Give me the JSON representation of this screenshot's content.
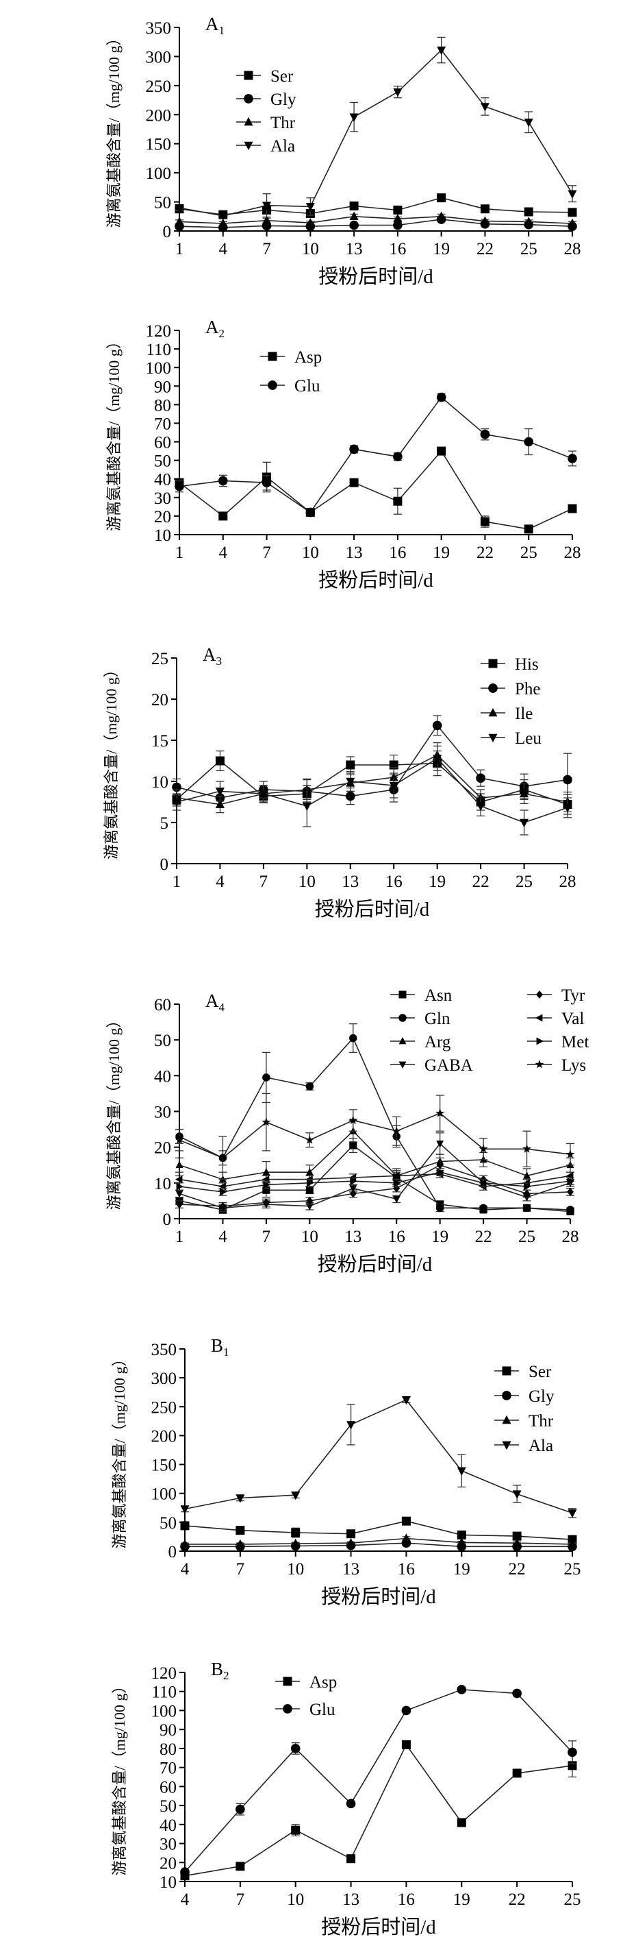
{
  "chart_data": [
    {
      "panel": "A",
      "panel_sub": "1",
      "type": "line",
      "xlabel": "授粉后时间/d",
      "ylabel": "游离氨基酸含量/（mg/100 g）",
      "x": [
        1,
        4,
        7,
        10,
        13,
        16,
        19,
        22,
        25,
        28
      ],
      "xlim": [
        1,
        28
      ],
      "ylim": [
        0,
        350
      ],
      "yticks": [
        0,
        50,
        100,
        150,
        200,
        250,
        300,
        350
      ],
      "legend_position": "top-left",
      "series": [
        {
          "name": "Ser",
          "marker": "square",
          "values": [
            38,
            28,
            36,
            30,
            43,
            36,
            57,
            38,
            33,
            32
          ],
          "errors": [
            5,
            3,
            5,
            3,
            3,
            3,
            3,
            4,
            3,
            3
          ]
        },
        {
          "name": "Gly",
          "marker": "circle",
          "values": [
            8,
            6,
            9,
            8,
            10,
            10,
            20,
            12,
            11,
            8
          ],
          "errors": [
            2,
            2,
            2,
            2,
            2,
            2,
            3,
            2,
            2,
            2
          ]
        },
        {
          "name": "Thr",
          "marker": "triangle-up",
          "values": [
            16,
            13,
            18,
            14,
            25,
            21,
            25,
            17,
            16,
            13
          ],
          "errors": [
            3,
            3,
            4,
            3,
            4,
            3,
            4,
            3,
            3,
            3
          ]
        },
        {
          "name": "Ala",
          "marker": "triangle-down",
          "values": [
            40,
            26,
            44,
            42,
            196,
            239,
            311,
            214,
            187,
            64
          ],
          "errors": [
            5,
            5,
            20,
            15,
            25,
            10,
            22,
            15,
            18,
            14
          ]
        }
      ]
    },
    {
      "panel": "A",
      "panel_sub": "2",
      "type": "line",
      "xlabel": "授粉后时间/d",
      "ylabel": "游离氨基酸含量/（mg/100 g）",
      "x": [
        1,
        4,
        7,
        10,
        13,
        16,
        19,
        22,
        25,
        28
      ],
      "xlim": [
        1,
        28
      ],
      "ylim": [
        10,
        120
      ],
      "yticks": [
        10,
        20,
        30,
        40,
        50,
        60,
        70,
        80,
        90,
        100,
        110,
        120
      ],
      "legend_position": "top-left",
      "series": [
        {
          "name": "Asp",
          "marker": "square",
          "values": [
            38,
            20,
            41,
            22,
            38,
            28,
            55,
            17,
            13,
            24
          ],
          "errors": [
            2,
            1,
            8,
            1,
            1,
            7,
            1,
            3,
            1,
            1
          ]
        },
        {
          "name": "Glu",
          "marker": "circle",
          "values": [
            36,
            39,
            38,
            22,
            56,
            52,
            84,
            64,
            60,
            51
          ],
          "errors": [
            3,
            3,
            4,
            2,
            2,
            2,
            2,
            3,
            7,
            4
          ]
        }
      ]
    },
    {
      "panel": "A",
      "panel_sub": "3",
      "type": "line",
      "xlabel": "授粉后时间/d",
      "ylabel": "游离氨基酸含量/（mg/100 g）",
      "x": [
        1,
        4,
        7,
        10,
        13,
        16,
        19,
        22,
        25,
        28
      ],
      "xlim": [
        1,
        28
      ],
      "ylim": [
        0,
        25
      ],
      "yticks": [
        0,
        5,
        10,
        15,
        20,
        25
      ],
      "legend_position": "top-right",
      "series": [
        {
          "name": "His",
          "marker": "square",
          "values": [
            7.8,
            12.5,
            8.2,
            8.5,
            12.0,
            12.0,
            12.2,
            7.5,
            9.0,
            7.2
          ],
          "errors": [
            0.6,
            1.2,
            0.8,
            1.0,
            1.0,
            1.2,
            1.5,
            1.0,
            1.2,
            1.2
          ]
        },
        {
          "name": "Phe",
          "marker": "circle",
          "values": [
            9.3,
            8.0,
            9.0,
            8.8,
            8.2,
            9.0,
            16.8,
            10.4,
            9.4,
            10.2
          ],
          "errors": [
            1.0,
            1.2,
            1.0,
            1.5,
            1.0,
            1.5,
            1.2,
            1.0,
            1.5,
            3.2
          ]
        },
        {
          "name": "Ile",
          "marker": "triangle-up",
          "values": [
            8.0,
            7.2,
            8.5,
            9.0,
            9.8,
            10.5,
            13.2,
            8.0,
            8.5,
            7.5
          ],
          "errors": [
            1.0,
            1.0,
            1.0,
            1.2,
            1.0,
            1.2,
            1.5,
            1.0,
            1.2,
            1.2
          ]
        },
        {
          "name": "Leu",
          "marker": "triangle-down",
          "values": [
            7.5,
            8.8,
            8.5,
            7.0,
            10.0,
            9.5,
            12.8,
            7.0,
            5.0,
            6.8
          ],
          "errors": [
            1.0,
            1.2,
            1.0,
            2.5,
            1.2,
            1.5,
            1.5,
            1.2,
            1.5,
            1.2
          ]
        }
      ]
    },
    {
      "panel": "A",
      "panel_sub": "4",
      "type": "line",
      "xlabel": "授粉后时间/d",
      "ylabel": "游离氨基酸含量/（mg/100 g）",
      "x": [
        1,
        4,
        7,
        10,
        13,
        16,
        19,
        22,
        25,
        28
      ],
      "xlim": [
        1,
        28
      ],
      "ylim": [
        0,
        60
      ],
      "yticks": [
        0,
        10,
        20,
        30,
        40,
        50,
        60
      ],
      "legend_position": "top-right",
      "legend_columns": 2,
      "series": [
        {
          "name": "Asn",
          "marker": "square",
          "values": [
            5,
            2.5,
            8,
            8,
            20.5,
            11.5,
            4,
            2.5,
            3,
            2
          ],
          "errors": [
            1,
            1,
            2,
            1,
            2,
            2,
            1,
            0.5,
            0.5,
            0.5
          ]
        },
        {
          "name": "Gln",
          "marker": "circle",
          "values": [
            23,
            17,
            39.5,
            37,
            50.5,
            23,
            3,
            3,
            3,
            2.5
          ],
          "errors": [
            2,
            2,
            7,
            1,
            4,
            3,
            1,
            0.5,
            0.5,
            0.5
          ]
        },
        {
          "name": "Arg",
          "marker": "triangle-up",
          "values": [
            15,
            11,
            13,
            13,
            24.5,
            12,
            16,
            16.5,
            12,
            15
          ],
          "errors": [
            2,
            2,
            3,
            2,
            3,
            2,
            2,
            2,
            2,
            2
          ]
        },
        {
          "name": "GABA",
          "marker": "triangle-down",
          "values": [
            7,
            3,
            4,
            3.5,
            8.5,
            5.5,
            21,
            10,
            6,
            10
          ],
          "errors": [
            1,
            1,
            1,
            1,
            1,
            1,
            3,
            1,
            1,
            1
          ]
        },
        {
          "name": "Tyr",
          "marker": "diamond",
          "values": [
            4,
            3.5,
            4.5,
            5,
            7,
            8.5,
            15,
            11,
            7,
            7.5
          ],
          "errors": [
            1,
            1,
            1,
            1,
            1,
            1,
            2,
            1,
            1,
            1
          ]
        },
        {
          "name": "Val",
          "marker": "triangle-left",
          "values": [
            11,
            9,
            11,
            11,
            11.5,
            12,
            12.5,
            9,
            10,
            12
          ],
          "errors": [
            1,
            1,
            1,
            1,
            1,
            1,
            1,
            1,
            1,
            1
          ]
        },
        {
          "name": "Met",
          "marker": "triangle-right",
          "values": [
            9,
            7.5,
            9.5,
            10,
            10.5,
            10,
            13,
            10,
            9,
            10.5
          ],
          "errors": [
            1,
            1,
            1,
            1,
            1,
            1,
            1,
            1,
            1,
            1
          ]
        },
        {
          "name": "Lys",
          "marker": "star",
          "values": [
            22,
            17,
            27,
            22,
            27.5,
            24.5,
            29.5,
            19.5,
            19.5,
            18
          ],
          "errors": [
            3,
            6,
            8,
            2,
            3,
            4,
            5,
            3,
            5,
            3
          ]
        }
      ]
    },
    {
      "panel": "B",
      "panel_sub": "1",
      "type": "line",
      "xlabel": "授粉后时间/d",
      "ylabel": "游离氨基酸含量/（mg/100 g）",
      "x": [
        4,
        7,
        10,
        13,
        16,
        19,
        22,
        25
      ],
      "xlim": [
        4,
        25
      ],
      "ylim": [
        0,
        350
      ],
      "yticks": [
        0,
        50,
        100,
        150,
        200,
        250,
        300,
        350
      ],
      "legend_position": "top-right",
      "series": [
        {
          "name": "Ser",
          "marker": "square",
          "values": [
            44,
            36,
            32,
            30,
            52,
            28,
            26,
            20
          ],
          "errors": [
            3,
            3,
            8,
            3,
            3,
            3,
            3,
            2
          ]
        },
        {
          "name": "Gly",
          "marker": "circle",
          "values": [
            8,
            8,
            9,
            10,
            14,
            8,
            8,
            8
          ],
          "errors": [
            1,
            1,
            1,
            1,
            2,
            1,
            1,
            1
          ]
        },
        {
          "name": "Thr",
          "marker": "triangle-up",
          "values": [
            12,
            12,
            13,
            14,
            22,
            15,
            14,
            12
          ],
          "errors": [
            2,
            2,
            2,
            2,
            3,
            2,
            2,
            2
          ]
        },
        {
          "name": "Ala",
          "marker": "triangle-down",
          "values": [
            73,
            92,
            97,
            219,
            262,
            139,
            99,
            66
          ],
          "errors": [
            5,
            5,
            5,
            35,
            5,
            28,
            15,
            8
          ]
        }
      ]
    },
    {
      "panel": "B",
      "panel_sub": "2",
      "type": "line",
      "xlabel": "授粉后时间/d",
      "ylabel": "游离氨基酸含量/（mg/100 g）",
      "x": [
        4,
        7,
        10,
        13,
        16,
        19,
        22,
        25
      ],
      "xlim": [
        4,
        25
      ],
      "ylim": [
        10,
        120
      ],
      "yticks": [
        10,
        20,
        30,
        40,
        50,
        60,
        70,
        80,
        90,
        100,
        110,
        120
      ],
      "legend_position": "top-left",
      "series": [
        {
          "name": "Asp",
          "marker": "square",
          "values": [
            13,
            18,
            37,
            22,
            82,
            41,
            67,
            71
          ],
          "errors": [
            1,
            1,
            3,
            1,
            1,
            1,
            1,
            6
          ]
        },
        {
          "name": "Glu",
          "marker": "circle",
          "values": [
            15,
            48,
            80,
            51,
            100,
            111,
            109,
            78
          ],
          "errors": [
            1,
            3,
            3,
            1,
            1,
            1,
            1,
            6
          ]
        }
      ]
    }
  ]
}
